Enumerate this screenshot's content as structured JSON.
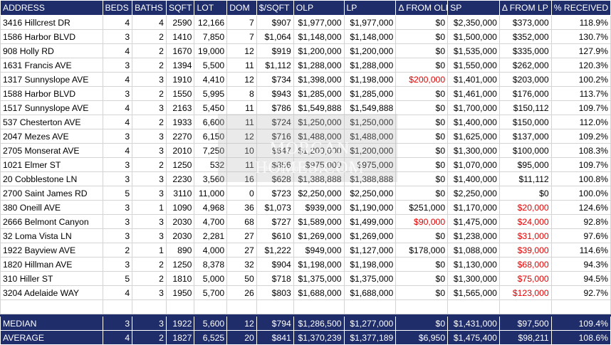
{
  "columns": [
    "ADDRESS",
    "BEDS",
    "BATHS",
    "SQFT",
    "LOT",
    "DOM",
    "$/SQFT",
    "OLP",
    "LP",
    "Δ FROM OLP",
    "SP",
    "Δ FROM LP",
    "% RECEIVED"
  ],
  "rows": [
    [
      "3416 Hillcrest DR",
      "4",
      "4",
      "2590",
      "12,166",
      "7",
      "$907",
      "$1,977,000",
      "$1,977,000",
      "$0",
      "$2,350,000",
      "$373,000",
      "118.9%"
    ],
    [
      "1586 Harbor BLVD",
      "3",
      "2",
      "1410",
      "7,850",
      "7",
      "$1,064",
      "$1,148,000",
      "$1,148,000",
      "$0",
      "$1,500,000",
      "$352,000",
      "130.7%"
    ],
    [
      "908 Holly RD",
      "4",
      "2",
      "1670",
      "19,000",
      "12",
      "$919",
      "$1,200,000",
      "$1,200,000",
      "$0",
      "$1,535,000",
      "$335,000",
      "127.9%"
    ],
    [
      "1631 Francis AVE",
      "3",
      "2",
      "1394",
      "5,500",
      "11",
      "$1,112",
      "$1,288,000",
      "$1,288,000",
      "$0",
      "$1,550,000",
      "$262,000",
      "120.3%"
    ],
    [
      "1317 Sunnyslope AVE",
      "4",
      "3",
      "1910",
      "4,410",
      "12",
      "$734",
      "$1,398,000",
      "$1,198,000",
      "$200,000",
      "$1,401,000",
      "$203,000",
      "100.2%"
    ],
    [
      "1588 Harbor BLVD",
      "3",
      "2",
      "1550",
      "5,995",
      "8",
      "$943",
      "$1,285,000",
      "$1,285,000",
      "$0",
      "$1,461,000",
      "$176,000",
      "113.7%"
    ],
    [
      "1517 Sunnyslope AVE",
      "4",
      "3",
      "2163",
      "5,450",
      "11",
      "$786",
      "$1,549,888",
      "$1,549,888",
      "$0",
      "$1,700,000",
      "$150,112",
      "109.7%"
    ],
    [
      "537 Chesterton AVE",
      "4",
      "2",
      "1933",
      "6,600",
      "11",
      "$724",
      "$1,250,000",
      "$1,250,000",
      "$0",
      "$1,400,000",
      "$150,000",
      "112.0%"
    ],
    [
      "2047 Mezes AVE",
      "3",
      "3",
      "2270",
      "6,150",
      "12",
      "$716",
      "$1,488,000",
      "$1,488,000",
      "$0",
      "$1,625,000",
      "$137,000",
      "109.2%"
    ],
    [
      "2705 Monserat AVE",
      "4",
      "3",
      "2010",
      "7,250",
      "10",
      "$647",
      "$1,200,000",
      "$1,200,000",
      "$0",
      "$1,300,000",
      "$100,000",
      "108.3%"
    ],
    [
      "1021 Elmer ST",
      "3",
      "2",
      "1250",
      "532",
      "11",
      "$856",
      "$975,000",
      "$975,000",
      "$0",
      "$1,070,000",
      "$95,000",
      "109.7%"
    ],
    [
      "20 Cobblestone LN",
      "3",
      "3",
      "2230",
      "3,560",
      "16",
      "$628",
      "$1,388,888",
      "$1,388,888",
      "$0",
      "$1,400,000",
      "$11,112",
      "100.8%"
    ],
    [
      "2700 Saint James RD",
      "5",
      "3",
      "3110",
      "11,000",
      "0",
      "$723",
      "$2,250,000",
      "$2,250,000",
      "$0",
      "$2,250,000",
      "$0",
      "100.0%"
    ],
    [
      "380 Oneill AVE",
      "3",
      "1",
      "1090",
      "4,968",
      "36",
      "$1,073",
      "$939,000",
      "$1,190,000",
      "$251,000",
      "$1,170,000",
      "$20,000",
      "124.6%"
    ],
    [
      "2666 Belmont Canyon",
      "3",
      "3",
      "2030",
      "4,700",
      "68",
      "$727",
      "$1,589,000",
      "$1,499,000",
      "$90,000",
      "$1,475,000",
      "$24,000",
      "92.8%"
    ],
    [
      "32 Loma Vista LN",
      "3",
      "3",
      "2030",
      "2,281",
      "27",
      "$610",
      "$1,269,000",
      "$1,269,000",
      "$0",
      "$1,238,000",
      "$31,000",
      "97.6%"
    ],
    [
      "1922 Bayview AVE",
      "2",
      "1",
      "890",
      "4,000",
      "27",
      "$1,222",
      "$949,000",
      "$1,127,000",
      "$178,000",
      "$1,088,000",
      "$39,000",
      "114.6%"
    ],
    [
      "1820 Hillman AVE",
      "3",
      "2",
      "1250",
      "8,378",
      "32",
      "$904",
      "$1,198,000",
      "$1,198,000",
      "$0",
      "$1,130,000",
      "$68,000",
      "94.3%"
    ],
    [
      "310 Hiller ST",
      "5",
      "2",
      "1810",
      "5,000",
      "50",
      "$718",
      "$1,375,000",
      "$1,375,000",
      "$0",
      "$1,300,000",
      "$75,000",
      "94.5%"
    ],
    [
      "3204 Adelaide WAY",
      "4",
      "3",
      "1950",
      "5,700",
      "26",
      "$803",
      "$1,688,000",
      "$1,688,000",
      "$0",
      "$1,565,000",
      "$123,000",
      "92.7%"
    ]
  ],
  "red_cells": {
    "4": [
      9
    ],
    "14": [
      9,
      11
    ],
    "15": [
      11
    ],
    "16": [
      11
    ],
    "17": [
      11
    ],
    "18": [
      11
    ],
    "19": [
      11
    ],
    "13": [
      11
    ]
  },
  "summary": [
    [
      "MEDIAN",
      "3",
      "3",
      "1922",
      "5,600",
      "12",
      "$794",
      "$1,286,500",
      "$1,277,000",
      "$0",
      "$1,431,000",
      "$97,500",
      "109.4%"
    ],
    [
      "AVERAGE",
      "4",
      "2",
      "1827",
      "6,525",
      "20",
      "$841",
      "$1,370,239",
      "$1,377,189",
      "$6,950",
      "$1,475,400",
      "$98,211",
      "108.6%"
    ]
  ],
  "watermark": {
    "brand": "MORGAN HOMES.COM",
    "tagline": "Helping People Win"
  },
  "colors": {
    "header_bg": "#1f2d6b",
    "negative_red": "#e00000"
  }
}
